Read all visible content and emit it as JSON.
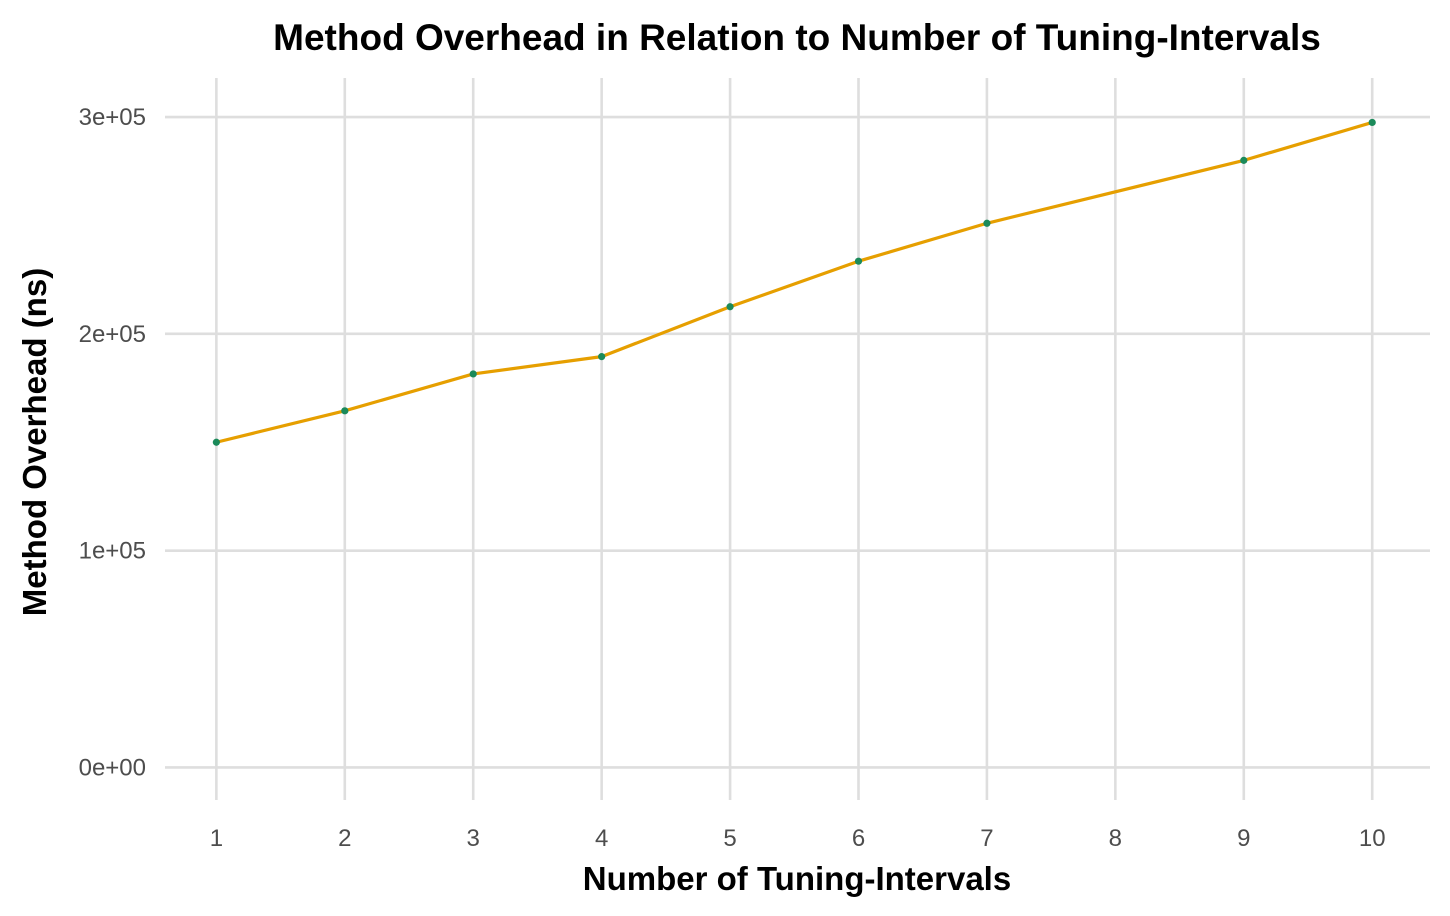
{
  "chart_data": {
    "type": "line",
    "title": "Method Overhead in Relation to Number of Tuning-Intervals",
    "xlabel": "Number of Tuning-Intervals",
    "ylabel": "Method Overhead (ns)",
    "x": [
      1,
      2,
      3,
      4,
      5,
      6,
      7,
      9,
      10
    ],
    "x_ticks": [
      1,
      2,
      3,
      4,
      5,
      6,
      7,
      8,
      9,
      10
    ],
    "x_tick_labels": [
      "1",
      "2",
      "3",
      "4",
      "5",
      "6",
      "7",
      "8",
      "9",
      "10"
    ],
    "y_ticks": [
      0,
      100000,
      200000,
      300000
    ],
    "y_tick_labels": [
      "0e+00",
      "1e+05",
      "2e+05",
      "3e+05"
    ],
    "xlim": [
      0.6,
      10.45
    ],
    "ylim": [
      -15000,
      318000
    ],
    "series": [
      {
        "values": [
          150000,
          164500,
          181500,
          189500,
          212500,
          233500,
          251000,
          280000,
          297500
        ]
      }
    ],
    "grid": true,
    "legend": "none",
    "colors": {
      "line": "#e69f00",
      "point": "#1b8a5a",
      "grid": "#dedede"
    }
  }
}
